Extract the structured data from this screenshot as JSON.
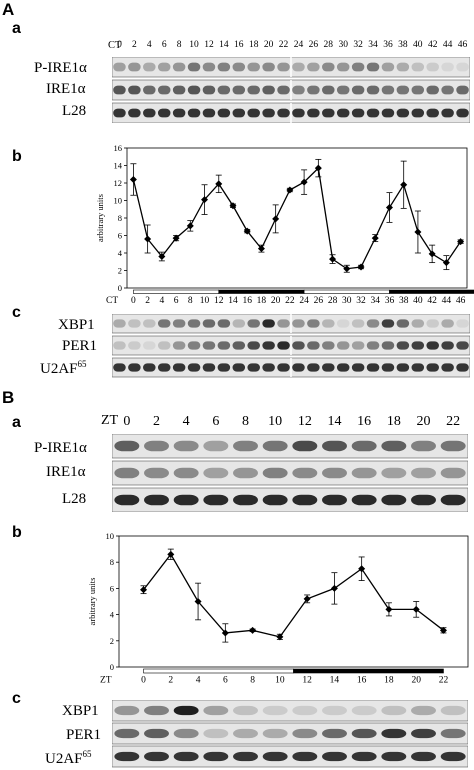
{
  "panelA": {
    "label": "A",
    "a": {
      "label": "a",
      "timeLabel": "CT",
      "lanes": [
        "0",
        "2",
        "4",
        "6",
        "8",
        "10",
        "12",
        "14",
        "16",
        "18",
        "20",
        "22",
        "24",
        "26",
        "28",
        "30",
        "32",
        "34",
        "36",
        "38",
        "40",
        "42",
        "44",
        "46"
      ],
      "rows": [
        {
          "name": "P-IRE1α",
          "intensity": [
            0.35,
            0.4,
            0.3,
            0.35,
            0.4,
            0.55,
            0.45,
            0.5,
            0.45,
            0.4,
            0.45,
            0.4,
            0.3,
            0.35,
            0.45,
            0.4,
            0.5,
            0.55,
            0.35,
            0.3,
            0.2,
            0.15,
            0.1,
            0.1
          ]
        },
        {
          "name": "IRE1α",
          "intensity": [
            0.7,
            0.7,
            0.6,
            0.6,
            0.65,
            0.7,
            0.65,
            0.6,
            0.6,
            0.6,
            0.65,
            0.6,
            0.5,
            0.55,
            0.6,
            0.55,
            0.6,
            0.6,
            0.55,
            0.55,
            0.55,
            0.6,
            0.55,
            0.6
          ]
        },
        {
          "name": "L28",
          "intensity": [
            0.85,
            0.85,
            0.85,
            0.85,
            0.85,
            0.85,
            0.85,
            0.85,
            0.85,
            0.85,
            0.85,
            0.85,
            0.85,
            0.85,
            0.85,
            0.85,
            0.85,
            0.85,
            0.85,
            0.85,
            0.85,
            0.85,
            0.85,
            0.85
          ]
        }
      ]
    },
    "b": {
      "label": "b",
      "chart_data": {
        "type": "line",
        "xlabel": "CT",
        "ylabel": "arbitrary units",
        "x": [
          0,
          2,
          4,
          6,
          8,
          10,
          12,
          14,
          16,
          18,
          20,
          22,
          24,
          26,
          28,
          30,
          32,
          34,
          36,
          38,
          40,
          42,
          44,
          46
        ],
        "values": [
          12.4,
          5.6,
          3.6,
          5.7,
          7.1,
          10.1,
          11.9,
          9.4,
          6.5,
          4.5,
          7.9,
          11.2,
          12.1,
          13.7,
          3.3,
          2.2,
          2.4,
          5.7,
          9.2,
          11.8,
          6.4,
          3.9,
          2.9,
          5.3
        ],
        "errors": [
          1.8,
          1.6,
          0.5,
          0.3,
          0.6,
          1.7,
          1.0,
          0.2,
          0.2,
          0.4,
          1.6,
          0.2,
          1.4,
          1.0,
          0.5,
          0.4,
          0.2,
          0.4,
          1.7,
          2.7,
          2.4,
          1.0,
          0.8,
          0.2
        ],
        "ylim": [
          0,
          16
        ],
        "yticks": [
          0,
          2,
          4,
          6,
          8,
          10,
          12,
          14,
          16
        ],
        "light_dark_bar": [
          {
            "from": 0,
            "to": 12,
            "phase": "light"
          },
          {
            "from": 12,
            "to": 24,
            "phase": "dark"
          },
          {
            "from": 24,
            "to": 36,
            "phase": "light"
          },
          {
            "from": 36,
            "to": 48,
            "phase": "dark"
          }
        ]
      }
    },
    "c": {
      "label": "c",
      "rows": [
        {
          "name": "XBP1",
          "intensity": [
            0.3,
            0.2,
            0.2,
            0.55,
            0.5,
            0.55,
            0.6,
            0.6,
            0.25,
            0.55,
            0.9,
            0.4,
            0.4,
            0.5,
            0.25,
            0.1,
            0.2,
            0.45,
            0.8,
            0.6,
            0.3,
            0.15,
            0.3,
            0.1
          ]
        },
        {
          "name": "PER1",
          "intensity": [
            0.2,
            0.15,
            0.1,
            0.2,
            0.4,
            0.5,
            0.55,
            0.6,
            0.65,
            0.75,
            0.85,
            0.9,
            0.7,
            0.6,
            0.5,
            0.4,
            0.35,
            0.5,
            0.6,
            0.75,
            0.8,
            0.85,
            0.8,
            0.75
          ]
        },
        {
          "name": "U2AF",
          "sup": "65",
          "intensity": [
            0.85,
            0.85,
            0.85,
            0.85,
            0.85,
            0.85,
            0.85,
            0.85,
            0.85,
            0.85,
            0.85,
            0.85,
            0.85,
            0.85,
            0.85,
            0.85,
            0.85,
            0.85,
            0.85,
            0.85,
            0.85,
            0.85,
            0.85,
            0.85
          ]
        }
      ]
    }
  },
  "panelB": {
    "label": "B",
    "a": {
      "label": "a",
      "timeLabel": "ZT",
      "lanes": [
        "0",
        "2",
        "4",
        "6",
        "8",
        "10",
        "12",
        "14",
        "16",
        "18",
        "20",
        "22"
      ],
      "rows": [
        {
          "name": "P-IRE1α",
          "intensity": [
            0.65,
            0.5,
            0.45,
            0.35,
            0.5,
            0.55,
            0.75,
            0.7,
            0.6,
            0.65,
            0.5,
            0.55
          ]
        },
        {
          "name": "IRE1α",
          "intensity": [
            0.5,
            0.45,
            0.45,
            0.35,
            0.4,
            0.5,
            0.45,
            0.45,
            0.4,
            0.35,
            0.35,
            0.4
          ]
        },
        {
          "name": "L28",
          "intensity": [
            0.9,
            0.9,
            0.9,
            0.9,
            0.9,
            0.9,
            0.9,
            0.9,
            0.9,
            0.9,
            0.9,
            0.9
          ]
        }
      ]
    },
    "b": {
      "label": "b",
      "chart_data": {
        "type": "line",
        "xlabel": "ZT",
        "ylabel": "arbitrary units",
        "x": [
          0,
          2,
          4,
          6,
          8,
          10,
          12,
          14,
          16,
          18,
          20,
          22
        ],
        "values": [
          5.9,
          8.6,
          5.0,
          2.6,
          2.8,
          2.3,
          5.2,
          6.0,
          7.5,
          4.4,
          4.4,
          2.8
        ],
        "errors": [
          0.3,
          0.4,
          1.4,
          0.7,
          0.1,
          0.2,
          0.3,
          1.2,
          0.9,
          0.5,
          0.6,
          0.2
        ],
        "ylim": [
          0,
          10
        ],
        "yticks": [
          0,
          2,
          4,
          6,
          8,
          10
        ],
        "light_dark_bar": [
          {
            "from": 0,
            "to": 11,
            "phase": "light"
          },
          {
            "from": 11,
            "to": 22,
            "phase": "dark"
          }
        ]
      }
    },
    "c": {
      "label": "c",
      "rows": [
        {
          "name": "XBP1",
          "intensity": [
            0.4,
            0.5,
            0.95,
            0.35,
            0.2,
            0.15,
            0.15,
            0.15,
            0.15,
            0.2,
            0.3,
            0.2
          ]
        },
        {
          "name": "PER1",
          "intensity": [
            0.6,
            0.65,
            0.45,
            0.2,
            0.3,
            0.3,
            0.45,
            0.6,
            0.7,
            0.85,
            0.8,
            0.55
          ]
        },
        {
          "name": "U2AF",
          "sup": "65",
          "intensity": [
            0.85,
            0.85,
            0.85,
            0.85,
            0.85,
            0.85,
            0.85,
            0.85,
            0.85,
            0.85,
            0.85,
            0.85
          ]
        }
      ]
    }
  }
}
